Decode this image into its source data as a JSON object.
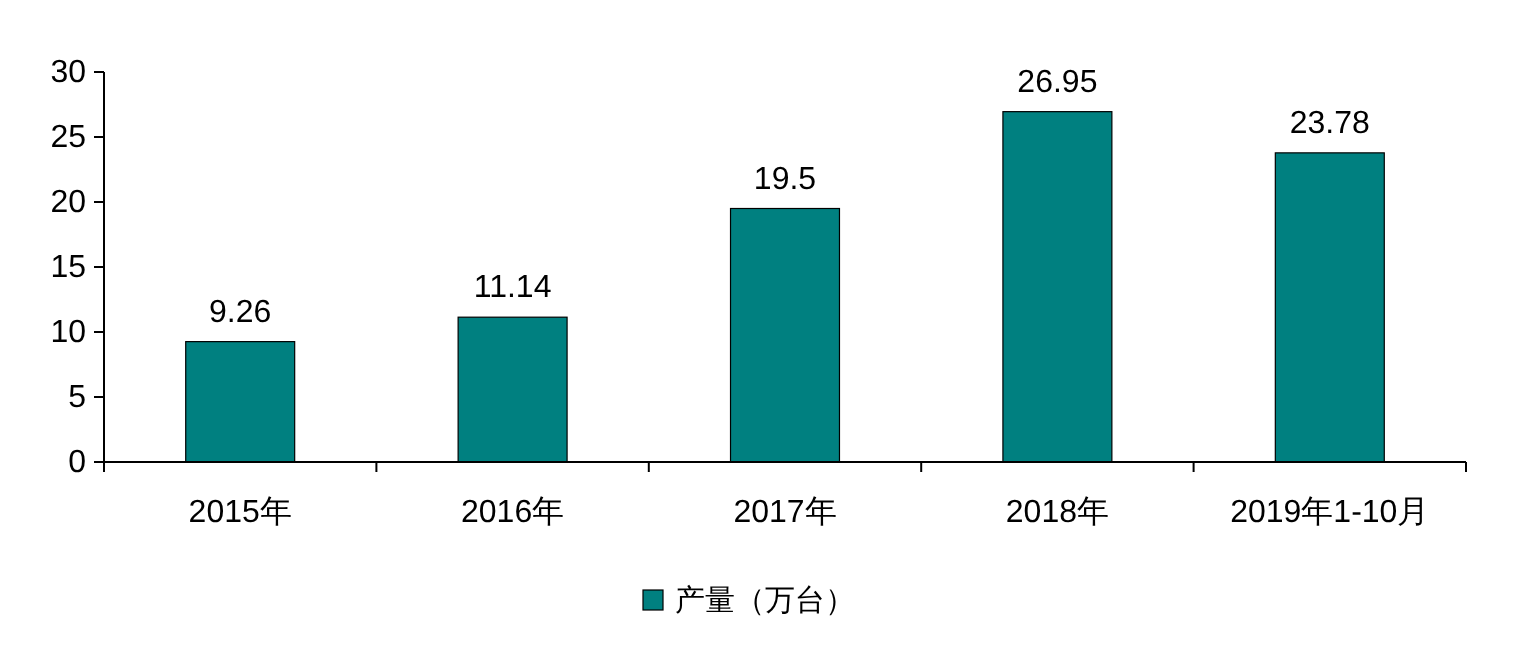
{
  "chart_data": {
    "type": "bar",
    "categories": [
      "2015年",
      "2016年",
      "2017年",
      "2018年",
      "2019年1-10月"
    ],
    "series": [
      {
        "name": "产量（万台）",
        "color": "#008080",
        "values": [
          9.26,
          11.14,
          19.5,
          26.95,
          23.78
        ]
      }
    ],
    "ylim": [
      0,
      30
    ],
    "yticks": [
      0,
      5,
      10,
      15,
      20,
      25,
      30
    ],
    "data_labels": true,
    "legend": "bottom"
  }
}
